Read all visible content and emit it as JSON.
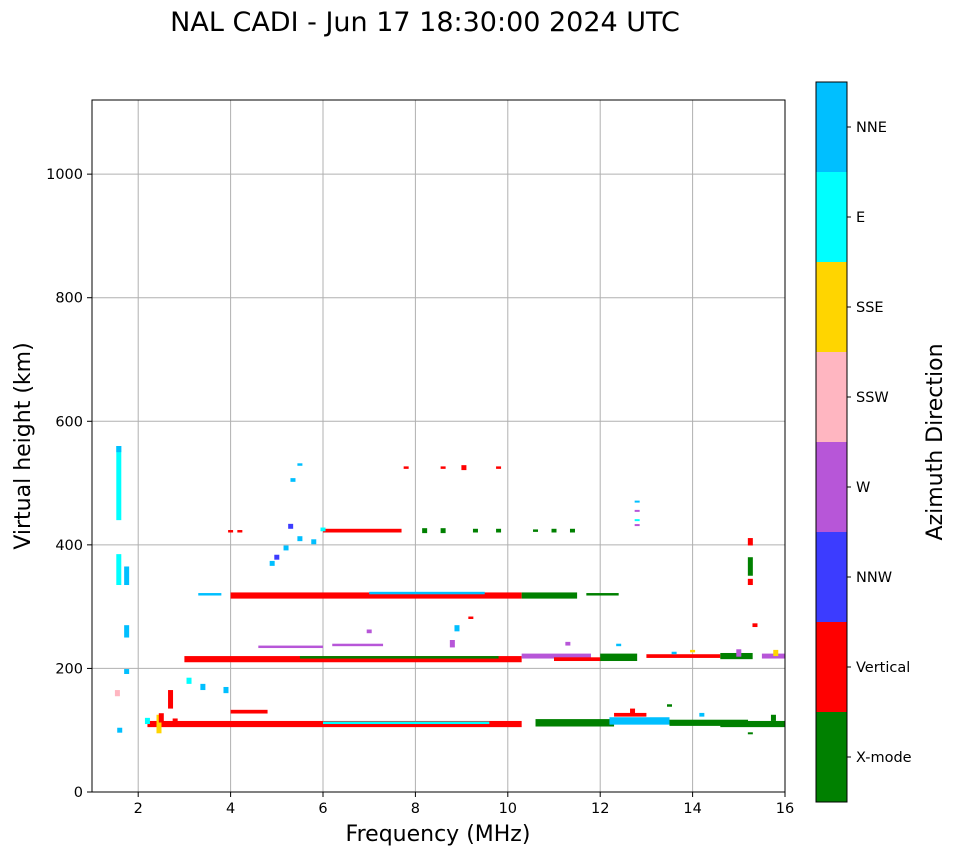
{
  "chart_data": {
    "type": "scatter",
    "subtype": "ionogram",
    "title": "NAL CADI - Jun 17 18:30:00 2024 UTC",
    "xlabel": "Frequency (MHz)",
    "ylabel": "Virtual height (km)",
    "xlim": [
      1,
      16
    ],
    "ylim": [
      0,
      1120
    ],
    "xticks": [
      2,
      4,
      6,
      8,
      10,
      12,
      14,
      16
    ],
    "yticks": [
      0,
      200,
      400,
      600,
      800,
      1000
    ],
    "grid": true,
    "colorbar": {
      "label": "Azimuth Direction",
      "categories": [
        "X-mode",
        "Vertical",
        "NNW",
        "W",
        "SSW",
        "SSE",
        "E",
        "NNE"
      ],
      "colors": [
        "#008000",
        "#ff0000",
        "#3c3cff",
        "#b756d8",
        "#ffb6c1",
        "#ffd500",
        "#00ffff",
        "#00bfff"
      ]
    },
    "echoes": [
      {
        "f": 1.58,
        "h": 500,
        "c": "E",
        "dh": 120
      },
      {
        "f": 1.58,
        "h": 360,
        "c": "E",
        "dh": 50
      },
      {
        "f": 1.58,
        "h": 555,
        "c": "NNE",
        "dh": 10
      },
      {
        "f": 1.6,
        "h": 100,
        "c": "NNE",
        "dh": 8
      },
      {
        "f": 1.55,
        "h": 160,
        "c": "SSW",
        "dh": 10
      },
      {
        "f": 1.75,
        "h": 350,
        "c": "NNE",
        "dh": 30
      },
      {
        "f": 1.75,
        "h": 260,
        "c": "NNE",
        "dh": 20
      },
      {
        "f": 1.75,
        "h": 195,
        "c": "NNE",
        "dh": 8
      },
      {
        "f": 2.2,
        "h": 115,
        "c": "E",
        "dh": 10
      },
      {
        "f": 2.45,
        "h": 110,
        "c": "SSE",
        "dh": 30
      },
      {
        "f": 2.5,
        "h": 120,
        "c": "Vertical",
        "dh": 15
      },
      {
        "f": 2.7,
        "h": 150,
        "c": "Vertical",
        "dh": 30
      },
      {
        "f": 2.8,
        "h": 113,
        "c": "Vertical",
        "dh": 12
      },
      {
        "f": 3.1,
        "h": 180,
        "c": "E",
        "dh": 10
      },
      {
        "f": 3.4,
        "h": 170,
        "c": "NNE",
        "dh": 10
      },
      {
        "f": 3.9,
        "h": 165,
        "c": "NNE",
        "dh": 10
      },
      {
        "f": 4.0,
        "h": 422,
        "c": "Vertical",
        "dh": 4
      },
      {
        "f": 4.2,
        "h": 422,
        "c": "Vertical",
        "dh": 4
      },
      {
        "f": 4.9,
        "h": 370,
        "c": "NNE",
        "dh": 8
      },
      {
        "f": 5.0,
        "h": 380,
        "c": "NNW",
        "dh": 8
      },
      {
        "f": 5.2,
        "h": 395,
        "c": "NNE",
        "dh": 8
      },
      {
        "f": 5.5,
        "h": 410,
        "c": "NNE",
        "dh": 8
      },
      {
        "f": 5.3,
        "h": 430,
        "c": "NNW",
        "dh": 8
      },
      {
        "f": 5.35,
        "h": 505,
        "c": "NNE",
        "dh": 6
      },
      {
        "f": 5.5,
        "h": 530,
        "c": "NNE",
        "dh": 4
      },
      {
        "f": 5.8,
        "h": 405,
        "c": "NNE",
        "dh": 8
      },
      {
        "f": 6.0,
        "h": 425,
        "c": "E",
        "dh": 6
      },
      {
        "f": 7.8,
        "h": 525,
        "c": "Vertical",
        "dh": 4
      },
      {
        "f": 8.6,
        "h": 525,
        "c": "Vertical",
        "dh": 4
      },
      {
        "f": 9.05,
        "h": 525,
        "c": "Vertical",
        "dh": 8
      },
      {
        "f": 9.8,
        "h": 525,
        "c": "Vertical",
        "dh": 4
      },
      {
        "f": 8.2,
        "h": 423,
        "c": "X-mode",
        "dh": 8
      },
      {
        "f": 8.6,
        "h": 423,
        "c": "X-mode",
        "dh": 8
      },
      {
        "f": 9.3,
        "h": 423,
        "c": "X-mode",
        "dh": 6
      },
      {
        "f": 9.8,
        "h": 423,
        "c": "X-mode",
        "dh": 6
      },
      {
        "f": 10.6,
        "h": 423,
        "c": "X-mode",
        "dh": 4
      },
      {
        "f": 11.0,
        "h": 423,
        "c": "X-mode",
        "dh": 6
      },
      {
        "f": 11.4,
        "h": 423,
        "c": "X-mode",
        "dh": 6
      },
      {
        "f": 12.8,
        "h": 470,
        "c": "NNE",
        "dh": 3
      },
      {
        "f": 12.8,
        "h": 455,
        "c": "W",
        "dh": 3
      },
      {
        "f": 12.8,
        "h": 440,
        "c": "E",
        "dh": 3
      },
      {
        "f": 12.8,
        "h": 432,
        "c": "W",
        "dh": 3
      },
      {
        "f": 15.25,
        "h": 405,
        "c": "Vertical",
        "dh": 12
      },
      {
        "f": 15.25,
        "h": 365,
        "c": "X-mode",
        "dh": 30
      },
      {
        "f": 15.25,
        "h": 340,
        "c": "Vertical",
        "dh": 10
      },
      {
        "f": 15.35,
        "h": 270,
        "c": "Vertical",
        "dh": 6
      },
      {
        "f": 15.25,
        "h": 95,
        "c": "X-mode",
        "dh": 3
      },
      {
        "f": 8.9,
        "h": 265,
        "c": "NNE",
        "dh": 10
      },
      {
        "f": 8.8,
        "h": 240,
        "c": "W",
        "dh": 12
      },
      {
        "f": 9.2,
        "h": 282,
        "c": "Vertical",
        "dh": 4
      },
      {
        "f": 7.0,
        "h": 260,
        "c": "W",
        "dh": 6
      },
      {
        "f": 11.3,
        "h": 240,
        "c": "W",
        "dh": 6
      },
      {
        "f": 12.4,
        "h": 238,
        "c": "NNE",
        "dh": 4
      },
      {
        "f": 13.6,
        "h": 225,
        "c": "NNE",
        "dh": 4
      },
      {
        "f": 14.0,
        "h": 228,
        "c": "SSE",
        "dh": 4
      },
      {
        "f": 15.0,
        "h": 225,
        "c": "W",
        "dh": 12
      },
      {
        "f": 15.8,
        "h": 225,
        "c": "SSE",
        "dh": 10
      },
      {
        "f": 13.5,
        "h": 140,
        "c": "X-mode",
        "dh": 4
      },
      {
        "f": 12.7,
        "h": 130,
        "c": "Vertical",
        "dh": 10
      },
      {
        "f": 14.2,
        "h": 125,
        "c": "NNE",
        "dh": 6
      },
      {
        "f": 15.75,
        "h": 120,
        "c": "X-mode",
        "dh": 10
      }
    ],
    "streaks": [
      {
        "f1": 3.0,
        "f2": 10.3,
        "h": 215,
        "dh": 10,
        "c": "Vertical"
      },
      {
        "f1": 5.5,
        "f2": 9.8,
        "h": 218,
        "dh": 4,
        "c": "X-mode"
      },
      {
        "f1": 10.3,
        "f2": 11.8,
        "h": 220,
        "dh": 8,
        "c": "W"
      },
      {
        "f1": 11.0,
        "f2": 12.2,
        "h": 215,
        "dh": 6,
        "c": "Vertical"
      },
      {
        "f1": 12.0,
        "f2": 12.8,
        "h": 218,
        "dh": 12,
        "c": "X-mode"
      },
      {
        "f1": 13.0,
        "f2": 14.6,
        "h": 220,
        "dh": 6,
        "c": "Vertical"
      },
      {
        "f1": 14.6,
        "f2": 15.3,
        "h": 220,
        "dh": 10,
        "c": "X-mode"
      },
      {
        "f1": 15.5,
        "f2": 16.0,
        "h": 220,
        "dh": 8,
        "c": "W"
      },
      {
        "f1": 4.0,
        "f2": 10.3,
        "h": 318,
        "dh": 10,
        "c": "Vertical"
      },
      {
        "f1": 7.0,
        "f2": 9.5,
        "h": 322,
        "dh": 4,
        "c": "NNE"
      },
      {
        "f1": 10.3,
        "f2": 11.5,
        "h": 318,
        "dh": 10,
        "c": "X-mode"
      },
      {
        "f1": 11.7,
        "f2": 12.4,
        "h": 320,
        "dh": 4,
        "c": "X-mode"
      },
      {
        "f1": 3.3,
        "f2": 3.8,
        "h": 320,
        "dh": 4,
        "c": "NNE"
      },
      {
        "f1": 6.0,
        "f2": 7.7,
        "h": 423,
        "dh": 6,
        "c": "Vertical"
      },
      {
        "f1": 2.2,
        "f2": 10.3,
        "h": 110,
        "dh": 10,
        "c": "Vertical"
      },
      {
        "f1": 6.0,
        "f2": 9.6,
        "h": 112,
        "dh": 4,
        "c": "E"
      },
      {
        "f1": 10.6,
        "f2": 12.3,
        "h": 112,
        "dh": 12,
        "c": "X-mode"
      },
      {
        "f1": 12.2,
        "f2": 13.5,
        "h": 115,
        "dh": 12,
        "c": "NNE"
      },
      {
        "f1": 13.5,
        "f2": 15.2,
        "h": 112,
        "dh": 10,
        "c": "X-mode"
      },
      {
        "f1": 14.6,
        "f2": 16.0,
        "h": 110,
        "dh": 10,
        "c": "X-mode"
      },
      {
        "f1": 12.3,
        "f2": 13.0,
        "h": 125,
        "dh": 6,
        "c": "Vertical"
      },
      {
        "f1": 4.0,
        "f2": 4.8,
        "h": 130,
        "dh": 6,
        "c": "Vertical"
      },
      {
        "f1": 4.6,
        "f2": 6.0,
        "h": 235,
        "dh": 4,
        "c": "W"
      },
      {
        "f1": 6.2,
        "f2": 7.3,
        "h": 238,
        "dh": 4,
        "c": "W"
      }
    ]
  }
}
